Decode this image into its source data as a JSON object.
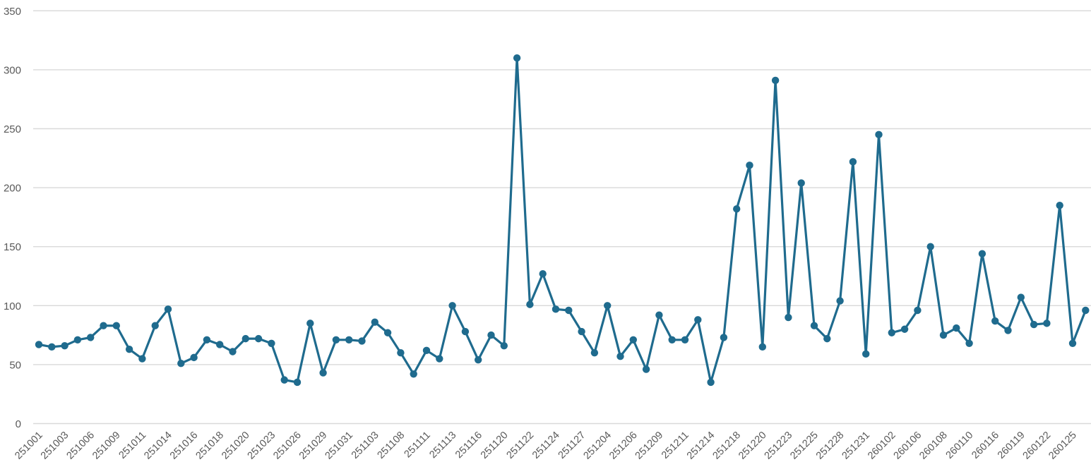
{
  "page": {
    "background_color": "#ffffff"
  },
  "chart_data": {
    "type": "line",
    "title": "",
    "xlabel": "",
    "ylabel": "",
    "ylim": [
      0,
      350
    ],
    "y_ticks": [
      350,
      300,
      250,
      200,
      150,
      100,
      50,
      0
    ],
    "grid": "horizontal",
    "legend_position": "none",
    "gridline_color": "#d9d9d9",
    "axis_text_color": "#595959",
    "points_per_label": 2,
    "x_tick_labels": [
      "251001",
      "251003",
      "251006",
      "251009",
      "251011",
      "251014",
      "251016",
      "251018",
      "251020",
      "251023",
      "251026",
      "251029",
      "251031",
      "251103",
      "251108",
      "251111",
      "251113",
      "251116",
      "251120",
      "251122",
      "251124",
      "251127",
      "251204",
      "251206",
      "251209",
      "251211",
      "251214",
      "251218",
      "251220",
      "251223",
      "251225",
      "251228",
      "251231",
      "260102",
      "260106",
      "260108",
      "260110",
      "260116",
      "260119",
      "260122",
      "260125"
    ],
    "series": [
      {
        "name": "",
        "color": "#1f6b8e",
        "marker": "circle",
        "values": [
          67,
          65,
          66,
          71,
          73,
          83,
          83,
          63,
          55,
          83,
          97,
          51,
          56,
          71,
          67,
          61,
          72,
          72,
          68,
          37,
          35,
          85,
          43,
          71,
          71,
          70,
          86,
          77,
          60,
          42,
          62,
          55,
          100,
          78,
          54,
          75,
          66,
          310,
          101,
          127,
          97,
          96,
          78,
          60,
          100,
          57,
          71,
          46,
          92,
          71,
          71,
          88,
          35,
          73,
          182,
          219,
          65,
          291,
          90,
          204,
          83,
          72,
          104,
          222,
          59,
          245,
          77,
          80,
          96,
          150,
          75,
          81,
          68,
          144,
          87,
          79,
          107,
          84,
          85,
          185,
          68,
          96
        ]
      }
    ]
  }
}
